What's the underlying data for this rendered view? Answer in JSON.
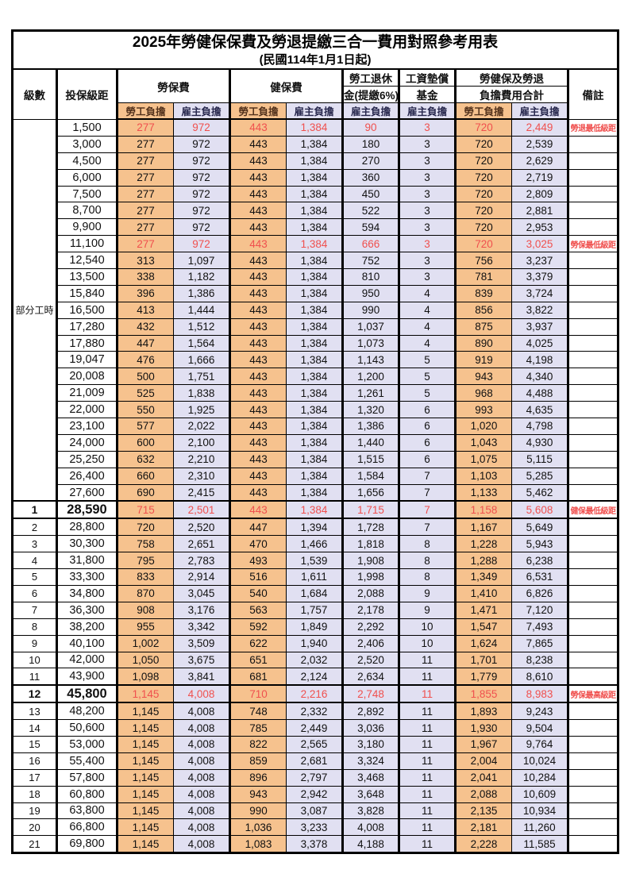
{
  "title": {
    "main": "2025年勞健保保費及勞退提繳三合一費用對照參考用表",
    "subtitle": "(民國114年1月1日起)"
  },
  "header": {
    "level": "級數",
    "bracket": "投保級距",
    "labor_insurance": "勞保費",
    "health_insurance": "健保費",
    "pension_line1": "勞工退休",
    "pension_line2": "金(提繳6%)",
    "wage_fund_line1": "工資墊償",
    "wage_fund_line2": "基金",
    "total_line1": "勞健保及勞退",
    "total_line2": "負擔費用合計",
    "remark": "備註",
    "employee": "勞工負擔",
    "employer": "雇主負擔"
  },
  "part_time": {
    "label": "部分工時",
    "row_count": 23
  },
  "colors": {
    "employee_bg": "#f6c28e",
    "employer_bg": "#e1e0f2",
    "highlight_red": "#f0504e",
    "border": "#000000"
  },
  "rows": [
    {
      "bracket": "1,500",
      "values": [
        "277",
        "972",
        "443",
        "1,384",
        "90",
        "3",
        "720",
        "2,449"
      ],
      "remark": "勞退最低級距",
      "red": true
    },
    {
      "bracket": "3,000",
      "values": [
        "277",
        "972",
        "443",
        "1,384",
        "180",
        "3",
        "720",
        "2,539"
      ]
    },
    {
      "bracket": "4,500",
      "values": [
        "277",
        "972",
        "443",
        "1,384",
        "270",
        "3",
        "720",
        "2,629"
      ]
    },
    {
      "bracket": "6,000",
      "values": [
        "277",
        "972",
        "443",
        "1,384",
        "360",
        "3",
        "720",
        "2,719"
      ]
    },
    {
      "bracket": "7,500",
      "values": [
        "277",
        "972",
        "443",
        "1,384",
        "450",
        "3",
        "720",
        "2,809"
      ]
    },
    {
      "bracket": "8,700",
      "values": [
        "277",
        "972",
        "443",
        "1,384",
        "522",
        "3",
        "720",
        "2,881"
      ]
    },
    {
      "bracket": "9,900",
      "values": [
        "277",
        "972",
        "443",
        "1,384",
        "594",
        "3",
        "720",
        "2,953"
      ]
    },
    {
      "bracket": "11,100",
      "values": [
        "277",
        "972",
        "443",
        "1,384",
        "666",
        "3",
        "720",
        "3,025"
      ],
      "remark": "勞保最低級距",
      "red": true
    },
    {
      "bracket": "12,540",
      "values": [
        "313",
        "1,097",
        "443",
        "1,384",
        "752",
        "3",
        "756",
        "3,237"
      ]
    },
    {
      "bracket": "13,500",
      "values": [
        "338",
        "1,182",
        "443",
        "1,384",
        "810",
        "3",
        "781",
        "3,379"
      ]
    },
    {
      "bracket": "15,840",
      "values": [
        "396",
        "1,386",
        "443",
        "1,384",
        "950",
        "4",
        "839",
        "3,724"
      ]
    },
    {
      "bracket": "16,500",
      "values": [
        "413",
        "1,444",
        "443",
        "1,384",
        "990",
        "4",
        "856",
        "3,822"
      ]
    },
    {
      "bracket": "17,280",
      "values": [
        "432",
        "1,512",
        "443",
        "1,384",
        "1,037",
        "4",
        "875",
        "3,937"
      ]
    },
    {
      "bracket": "17,880",
      "values": [
        "447",
        "1,564",
        "443",
        "1,384",
        "1,073",
        "4",
        "890",
        "4,025"
      ]
    },
    {
      "bracket": "19,047",
      "values": [
        "476",
        "1,666",
        "443",
        "1,384",
        "1,143",
        "5",
        "919",
        "4,198"
      ]
    },
    {
      "bracket": "20,008",
      "values": [
        "500",
        "1,751",
        "443",
        "1,384",
        "1,200",
        "5",
        "943",
        "4,340"
      ]
    },
    {
      "bracket": "21,009",
      "values": [
        "525",
        "1,838",
        "443",
        "1,384",
        "1,261",
        "5",
        "968",
        "4,488"
      ]
    },
    {
      "bracket": "22,000",
      "values": [
        "550",
        "1,925",
        "443",
        "1,384",
        "1,320",
        "6",
        "993",
        "4,635"
      ]
    },
    {
      "bracket": "23,100",
      "values": [
        "577",
        "2,022",
        "443",
        "1,384",
        "1,386",
        "6",
        "1,020",
        "4,798"
      ]
    },
    {
      "bracket": "24,000",
      "values": [
        "600",
        "2,100",
        "443",
        "1,384",
        "1,440",
        "6",
        "1,043",
        "4,930"
      ]
    },
    {
      "bracket": "25,250",
      "values": [
        "632",
        "2,210",
        "443",
        "1,384",
        "1,515",
        "6",
        "1,075",
        "5,115"
      ]
    },
    {
      "bracket": "26,400",
      "values": [
        "660",
        "2,310",
        "443",
        "1,384",
        "1,584",
        "7",
        "1,103",
        "5,285"
      ]
    },
    {
      "bracket": "27,600",
      "values": [
        "690",
        "2,415",
        "443",
        "1,384",
        "1,656",
        "7",
        "1,133",
        "5,462"
      ]
    },
    {
      "level": "1",
      "bracket": "28,590",
      "values": [
        "715",
        "2,501",
        "443",
        "1,384",
        "1,715",
        "7",
        "1,158",
        "5,608"
      ],
      "remark": "健保最低級距",
      "red": true,
      "bold": true
    },
    {
      "level": "2",
      "bracket": "28,800",
      "values": [
        "720",
        "2,520",
        "447",
        "1,394",
        "1,728",
        "7",
        "1,167",
        "5,649"
      ]
    },
    {
      "level": "3",
      "bracket": "30,300",
      "values": [
        "758",
        "2,651",
        "470",
        "1,466",
        "1,818",
        "8",
        "1,228",
        "5,943"
      ]
    },
    {
      "level": "4",
      "bracket": "31,800",
      "values": [
        "795",
        "2,783",
        "493",
        "1,539",
        "1,908",
        "8",
        "1,288",
        "6,238"
      ]
    },
    {
      "level": "5",
      "bracket": "33,300",
      "values": [
        "833",
        "2,914",
        "516",
        "1,611",
        "1,998",
        "8",
        "1,349",
        "6,531"
      ]
    },
    {
      "level": "6",
      "bracket": "34,800",
      "values": [
        "870",
        "3,045",
        "540",
        "1,684",
        "2,088",
        "9",
        "1,410",
        "6,826"
      ]
    },
    {
      "level": "7",
      "bracket": "36,300",
      "values": [
        "908",
        "3,176",
        "563",
        "1,757",
        "2,178",
        "9",
        "1,471",
        "7,120"
      ]
    },
    {
      "level": "8",
      "bracket": "38,200",
      "values": [
        "955",
        "3,342",
        "592",
        "1,849",
        "2,292",
        "10",
        "1,547",
        "7,493"
      ]
    },
    {
      "level": "9",
      "bracket": "40,100",
      "values": [
        "1,002",
        "3,509",
        "622",
        "1,940",
        "2,406",
        "10",
        "1,624",
        "7,865"
      ]
    },
    {
      "level": "10",
      "bracket": "42,000",
      "values": [
        "1,050",
        "3,675",
        "651",
        "2,032",
        "2,520",
        "11",
        "1,701",
        "8,238"
      ]
    },
    {
      "level": "11",
      "bracket": "43,900",
      "values": [
        "1,098",
        "3,841",
        "681",
        "2,124",
        "2,634",
        "11",
        "1,779",
        "8,610"
      ]
    },
    {
      "level": "12",
      "bracket": "45,800",
      "values": [
        "1,145",
        "4,008",
        "710",
        "2,216",
        "2,748",
        "11",
        "1,855",
        "8,983"
      ],
      "remark": "勞保最高級距",
      "red": true,
      "bold": true
    },
    {
      "level": "13",
      "bracket": "48,200",
      "values": [
        "1,145",
        "4,008",
        "748",
        "2,332",
        "2,892",
        "11",
        "1,893",
        "9,243"
      ]
    },
    {
      "level": "14",
      "bracket": "50,600",
      "values": [
        "1,145",
        "4,008",
        "785",
        "2,449",
        "3,036",
        "11",
        "1,930",
        "9,504"
      ]
    },
    {
      "level": "15",
      "bracket": "53,000",
      "values": [
        "1,145",
        "4,008",
        "822",
        "2,565",
        "3,180",
        "11",
        "1,967",
        "9,764"
      ]
    },
    {
      "level": "16",
      "bracket": "55,400",
      "values": [
        "1,145",
        "4,008",
        "859",
        "2,681",
        "3,324",
        "11",
        "2,004",
        "10,024"
      ]
    },
    {
      "level": "17",
      "bracket": "57,800",
      "values": [
        "1,145",
        "4,008",
        "896",
        "2,797",
        "3,468",
        "11",
        "2,041",
        "10,284"
      ]
    },
    {
      "level": "18",
      "bracket": "60,800",
      "values": [
        "1,145",
        "4,008",
        "943",
        "2,942",
        "3,648",
        "11",
        "2,088",
        "10,609"
      ]
    },
    {
      "level": "19",
      "bracket": "63,800",
      "values": [
        "1,145",
        "4,008",
        "990",
        "3,087",
        "3,828",
        "11",
        "2,135",
        "10,934"
      ]
    },
    {
      "level": "20",
      "bracket": "66,800",
      "values": [
        "1,145",
        "4,008",
        "1,036",
        "3,233",
        "4,008",
        "11",
        "2,181",
        "11,260"
      ]
    },
    {
      "level": "21",
      "bracket": "69,800",
      "values": [
        "1,145",
        "4,008",
        "1,083",
        "3,378",
        "4,188",
        "11",
        "2,228",
        "11,585"
      ]
    }
  ]
}
